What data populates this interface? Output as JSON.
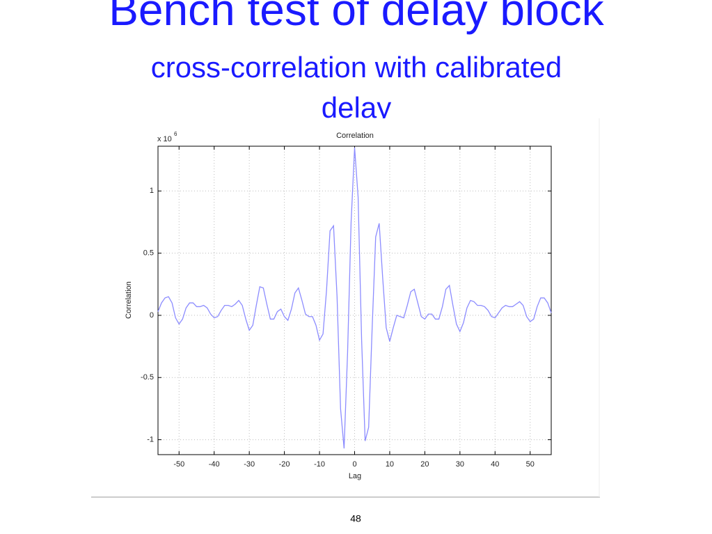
{
  "slide": {
    "title": "Bench test of delay block",
    "subtitle": "cross-correlation with calibrated delay",
    "page_number": "48"
  },
  "chart_data": {
    "type": "line",
    "title": "Correlation",
    "x_label": "Lag",
    "y_label": "Correlation",
    "y_scale_base": "x 10",
    "y_scale_exponent": "6",
    "x": [
      -56,
      -55,
      -54,
      -53,
      -52,
      -51,
      -50,
      -49,
      -48,
      -47,
      -46,
      -45,
      -44,
      -43,
      -42,
      -41,
      -40,
      -39,
      -38,
      -37,
      -36,
      -35,
      -34,
      -33,
      -32,
      -31,
      -30,
      -29,
      -28,
      -27,
      -26,
      -25,
      -24,
      -23,
      -22,
      -21,
      -20,
      -19,
      -18,
      -17,
      -16,
      -15,
      -14,
      -13,
      -12,
      -11,
      -10,
      -9,
      -8,
      -7,
      -6,
      -5,
      -4,
      -3,
      -2,
      -1,
      0,
      1,
      2,
      3,
      4,
      5,
      6,
      7,
      8,
      9,
      10,
      11,
      12,
      13,
      14,
      15,
      16,
      17,
      18,
      19,
      20,
      21,
      22,
      23,
      24,
      25,
      26,
      27,
      28,
      29,
      30,
      31,
      32,
      33,
      34,
      35,
      36,
      37,
      38,
      39,
      40,
      41,
      42,
      43,
      44,
      45,
      46,
      47,
      48,
      49,
      50,
      51,
      52,
      53,
      54,
      55,
      56
    ],
    "series": [
      {
        "name": "Correlation",
        "color": "#8c8cff",
        "values": [
          0.03,
          0.1,
          0.14,
          0.15,
          0.1,
          -0.02,
          -0.07,
          -0.03,
          0.06,
          0.1,
          0.1,
          0.07,
          0.07,
          0.08,
          0.06,
          0.01,
          -0.02,
          -0.01,
          0.04,
          0.08,
          0.08,
          0.07,
          0.09,
          0.12,
          0.08,
          -0.03,
          -0.12,
          -0.08,
          0.08,
          0.23,
          0.22,
          0.09,
          -0.03,
          -0.03,
          0.03,
          0.05,
          -0.01,
          -0.04,
          0.05,
          0.18,
          0.22,
          0.12,
          0.01,
          -0.01,
          -0.01,
          -0.08,
          -0.2,
          -0.15,
          0.2,
          0.68,
          0.72,
          0.15,
          -0.75,
          -1.07,
          -0.3,
          0.75,
          1.35,
          0.95,
          -0.2,
          -1.01,
          -0.9,
          -0.1,
          0.63,
          0.74,
          0.3,
          -0.1,
          -0.21,
          -0.1,
          0.0,
          -0.01,
          -0.02,
          0.08,
          0.19,
          0.21,
          0.1,
          -0.01,
          -0.03,
          0.01,
          0.01,
          -0.03,
          -0.03,
          0.07,
          0.21,
          0.24,
          0.08,
          -0.07,
          -0.13,
          -0.06,
          0.06,
          0.12,
          0.11,
          0.08,
          0.08,
          0.07,
          0.04,
          -0.01,
          -0.02,
          0.02,
          0.06,
          0.08,
          0.07,
          0.07,
          0.09,
          0.11,
          0.08,
          -0.01,
          -0.05,
          -0.03,
          0.07,
          0.14,
          0.14,
          0.1,
          0.02
        ]
      }
    ],
    "xlim": [
      -56,
      56
    ],
    "ylim": [
      -1.12,
      1.36
    ],
    "xticks": [
      -50,
      -40,
      -30,
      -20,
      -10,
      0,
      10,
      20,
      30,
      40,
      50
    ],
    "yticks": [
      -1,
      -0.5,
      0,
      0.5,
      1
    ],
    "grid": true
  }
}
